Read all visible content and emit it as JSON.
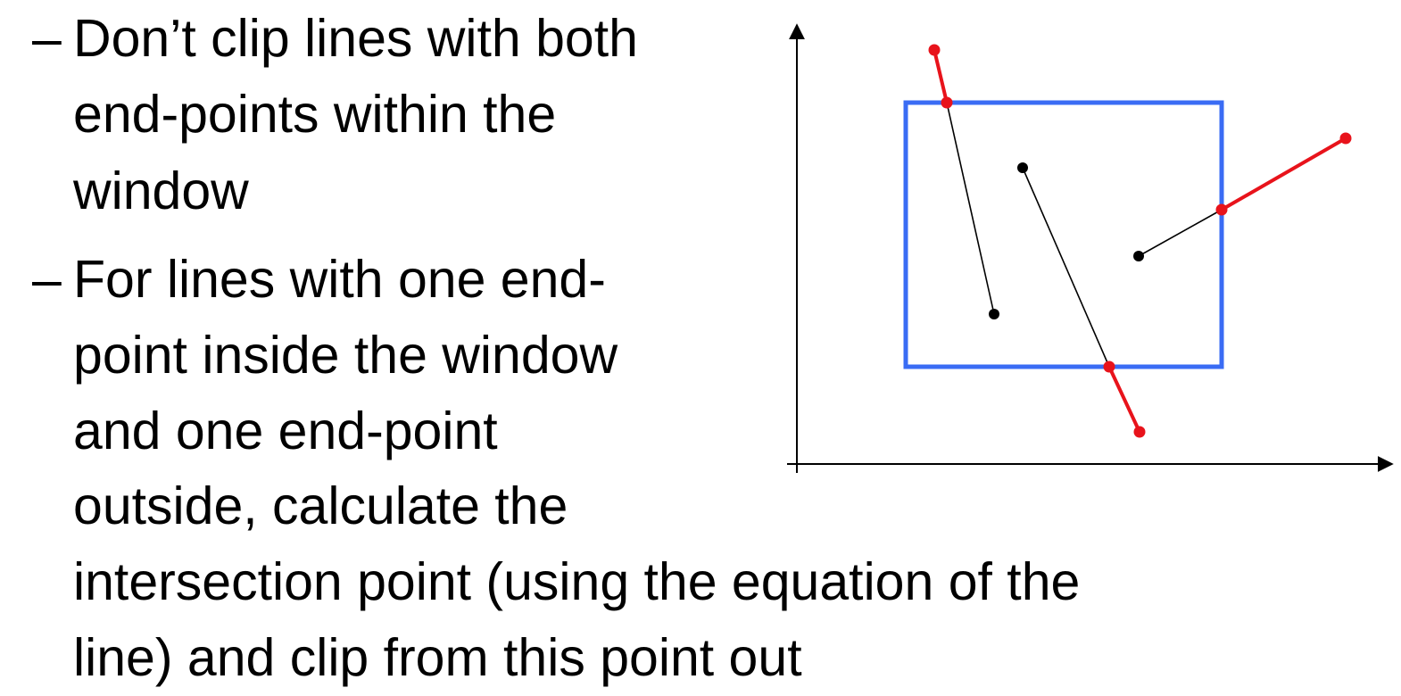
{
  "bullets": [
    {
      "marker": "–",
      "lines": [
        "Don’t clip lines with both",
        "end-points within the",
        "window"
      ]
    },
    {
      "marker": "–",
      "lines": [
        "For lines with one end-",
        "point inside the window",
        "and one end-point",
        "outside, calculate the",
        "intersection point (using the equation of the",
        "line) and clip from this point out"
      ]
    }
  ],
  "diagram": {
    "window_color": "#3a6cf4",
    "inside_color": "#000000",
    "clipped_color": "#e8131b",
    "axis_color": "#000000"
  }
}
